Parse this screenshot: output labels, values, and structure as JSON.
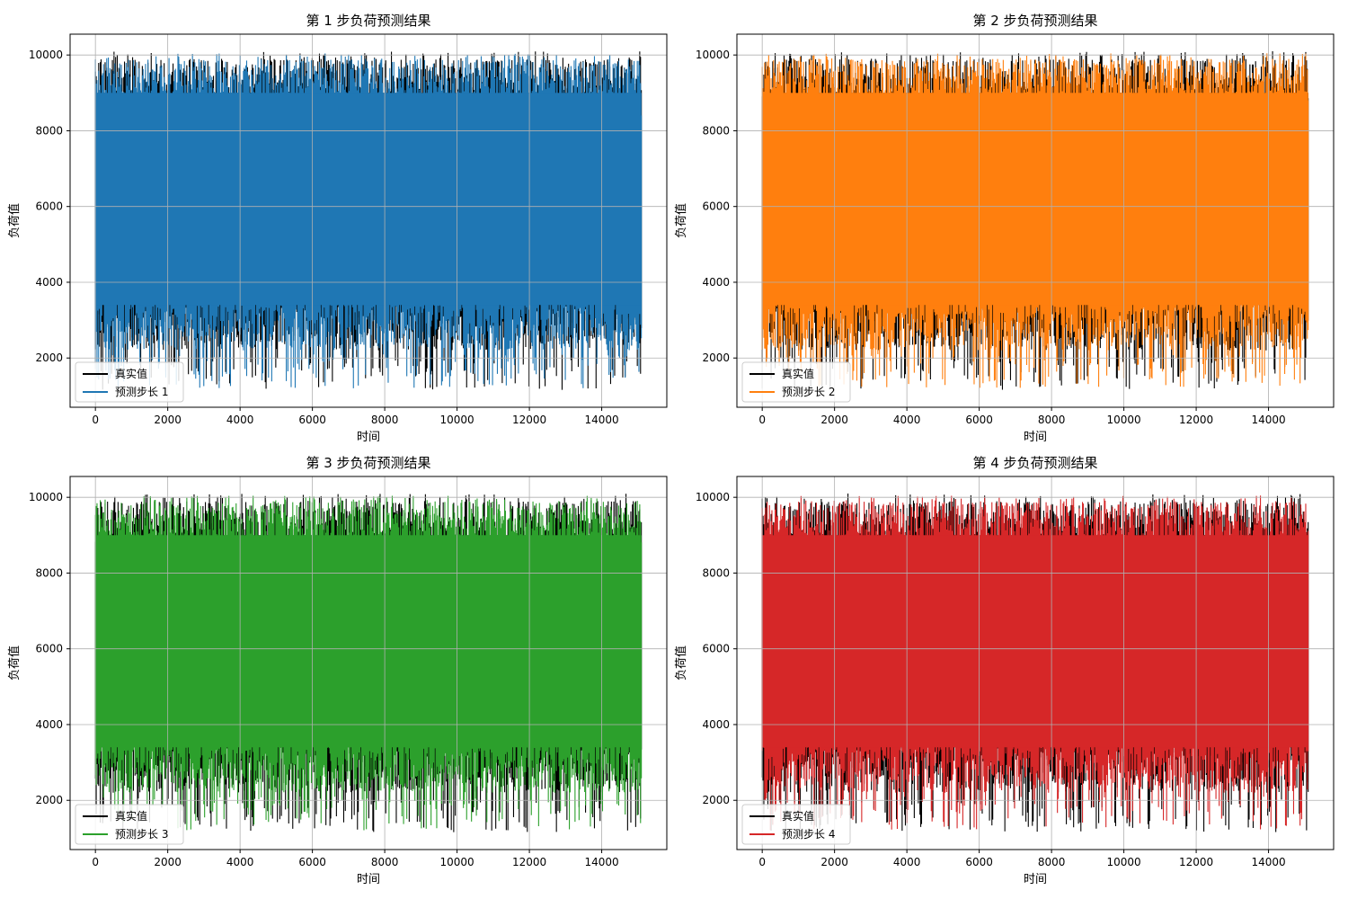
{
  "chart_data": [
    {
      "type": "line",
      "title": "第 1 步负荷预测结果",
      "xlabel": "时间",
      "ylabel": "负荷值",
      "xlim": [
        -700,
        15800
      ],
      "ylim": [
        700,
        10550
      ],
      "xticks": [
        0,
        2000,
        4000,
        6000,
        8000,
        10000,
        12000,
        14000
      ],
      "yticks": [
        2000,
        4000,
        6000,
        8000,
        10000
      ],
      "grid": true,
      "legend_position": "lower-left",
      "x_range": [
        0,
        15100
      ],
      "series": [
        {
          "name": "真实值",
          "color": "#000000",
          "range": [
            1150,
            10100
          ]
        },
        {
          "name": "预测步长 1",
          "color": "#1f77b4",
          "range": [
            1200,
            10050
          ]
        }
      ]
    },
    {
      "type": "line",
      "title": "第 2 步负荷预测结果",
      "xlabel": "时间",
      "ylabel": "负荷值",
      "xlim": [
        -700,
        15800
      ],
      "ylim": [
        700,
        10550
      ],
      "xticks": [
        0,
        2000,
        4000,
        6000,
        8000,
        10000,
        12000,
        14000
      ],
      "yticks": [
        2000,
        4000,
        6000,
        8000,
        10000
      ],
      "grid": true,
      "legend_position": "lower-left",
      "x_range": [
        0,
        15100
      ],
      "series": [
        {
          "name": "真实值",
          "color": "#000000",
          "range": [
            1150,
            10100
          ]
        },
        {
          "name": "预测步长 2",
          "color": "#ff7f0e",
          "range": [
            1200,
            10050
          ]
        }
      ]
    },
    {
      "type": "line",
      "title": "第 3 步负荷预测结果",
      "xlabel": "时间",
      "ylabel": "负荷值",
      "xlim": [
        -700,
        15800
      ],
      "ylim": [
        700,
        10550
      ],
      "xticks": [
        0,
        2000,
        4000,
        6000,
        8000,
        10000,
        12000,
        14000
      ],
      "yticks": [
        2000,
        4000,
        6000,
        8000,
        10000
      ],
      "grid": true,
      "legend_position": "lower-left",
      "x_range": [
        0,
        15100
      ],
      "series": [
        {
          "name": "真实值",
          "color": "#000000",
          "range": [
            1150,
            10100
          ]
        },
        {
          "name": "预测步长 3",
          "color": "#2ca02c",
          "range": [
            1200,
            10050
          ]
        }
      ]
    },
    {
      "type": "line",
      "title": "第 4 步负荷预测结果",
      "xlabel": "时间",
      "ylabel": "负荷值",
      "xlim": [
        -700,
        15800
      ],
      "ylim": [
        700,
        10550
      ],
      "xticks": [
        0,
        2000,
        4000,
        6000,
        8000,
        10000,
        12000,
        14000
      ],
      "yticks": [
        2000,
        4000,
        6000,
        8000,
        10000
      ],
      "grid": true,
      "legend_position": "lower-left",
      "x_range": [
        0,
        15100
      ],
      "series": [
        {
          "name": "真实值",
          "color": "#000000",
          "range": [
            1150,
            10100
          ]
        },
        {
          "name": "预测步长 4",
          "color": "#d62728",
          "range": [
            1200,
            10050
          ]
        }
      ]
    }
  ]
}
